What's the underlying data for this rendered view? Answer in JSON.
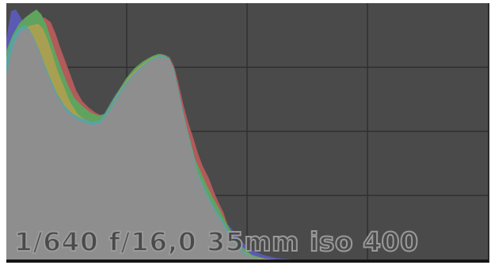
{
  "histogram": {
    "background": "#4a4a4a",
    "grid_color": "#2f2f2f",
    "luminance_color": "#8e8e8e",
    "channel_colors": {
      "red": "#b35a5a",
      "green": "#5fa35f",
      "blue": "#5a5ab3",
      "yellow": "#a8a050",
      "cyan": "#5aa3a3",
      "magenta": "#a35aa3"
    },
    "grid": {
      "columns": 4,
      "rows": 4
    }
  },
  "exif": {
    "shutter": "1/640",
    "aperture": "f/16,0",
    "focal_length": "35mm",
    "iso": "iso 400"
  }
}
